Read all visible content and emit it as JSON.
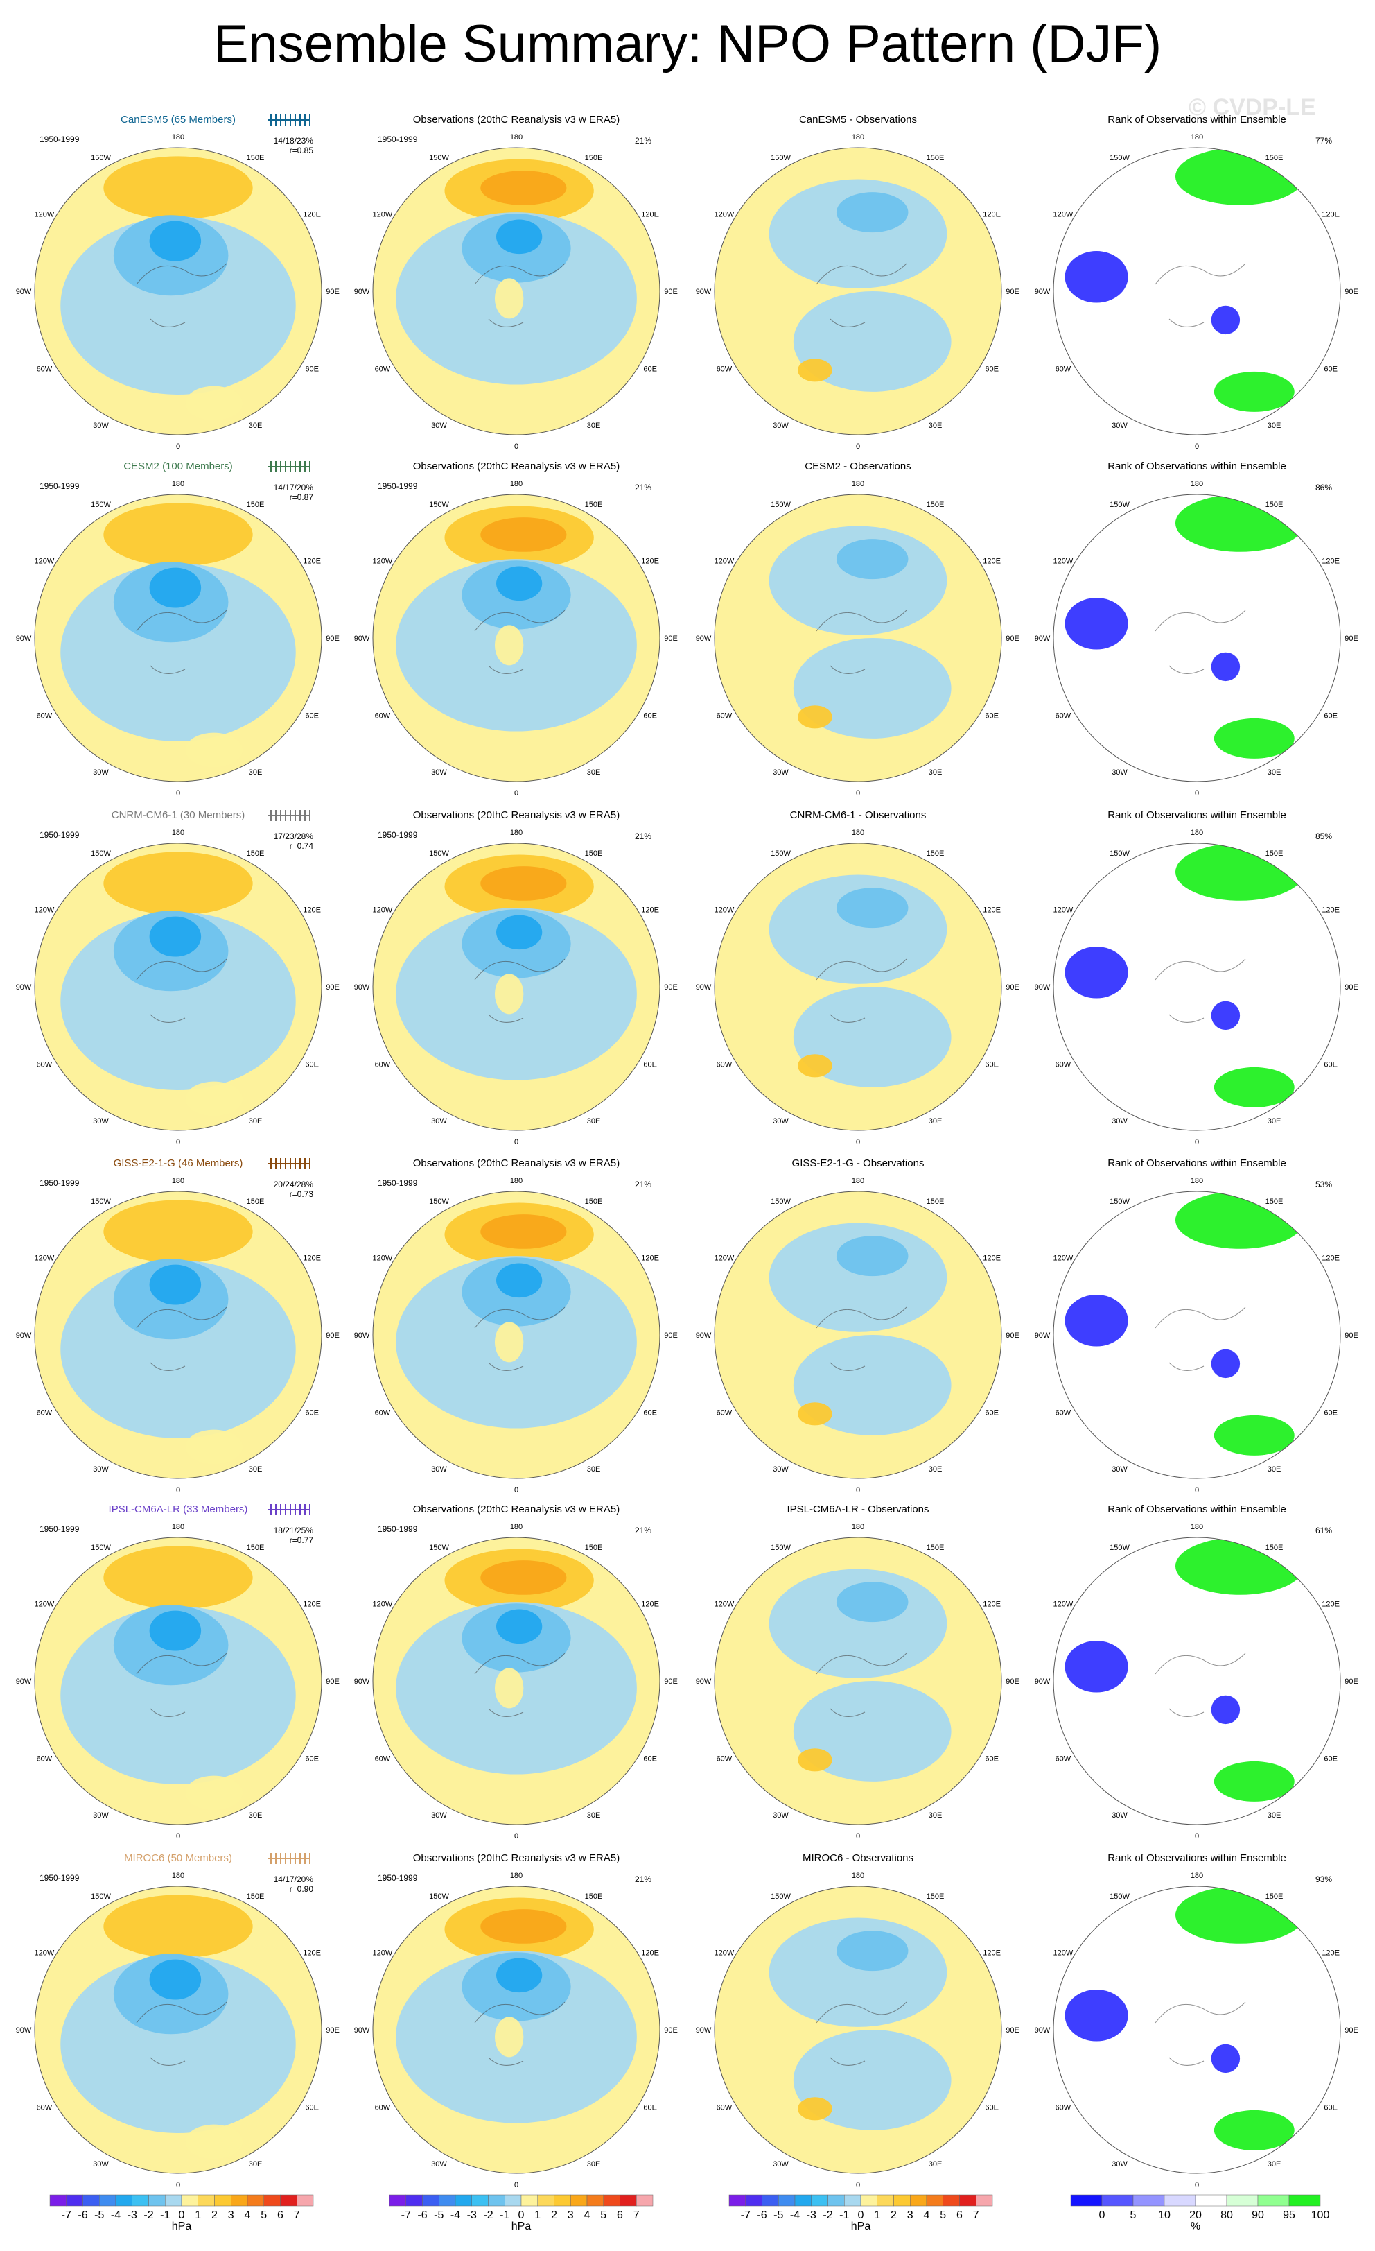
{
  "title": "Ensemble Summary: NPO Pattern (DJF)",
  "watermark": "© CVDP-LE",
  "period": "1950-1999",
  "obs_title": "Observations (20thC Reanalysis v3 w ERA5)",
  "obs_pct": "21%",
  "rank_title": "Rank of Observations within Ensemble",
  "lon_labels": [
    "180",
    "150E",
    "120E",
    "90E",
    "60E",
    "30E",
    "0",
    "30W",
    "60W",
    "90W",
    "120W",
    "150W"
  ],
  "colors": {
    "light_blue": "#a8d8ef",
    "mid_blue": "#6ec3ee",
    "bright_blue": "#22a8ee",
    "dark_blue": "#4a78d8",
    "light_yellow": "#fdf29c",
    "yellow_orange": "#fcc932",
    "orange": "#f9a719",
    "rank_white": "#ffffff",
    "rank_green": "#22f022",
    "rank_blue": "#3434ff"
  },
  "rows": [
    {
      "model": "CanESM5",
      "label": "CanESM5 (65 Members)",
      "color": "#0e6591",
      "stats": "14/18/23%",
      "r": "r=0.85",
      "diff_title": "CanESM5 - Observations",
      "rank_pct": "77%"
    },
    {
      "model": "CESM2",
      "label": "CESM2 (100 Members)",
      "color": "#3e7a4e",
      "stats": "14/17/20%",
      "r": "r=0.87",
      "diff_title": "CESM2 - Observations",
      "rank_pct": "86%"
    },
    {
      "model": "CNRM-CM6-1",
      "label": "CNRM-CM6-1 (30 Members)",
      "color": "#7a7a7a",
      "stats": "17/23/28%",
      "r": "r=0.74",
      "diff_title": "CNRM-CM6-1 - Observations",
      "rank_pct": "85%"
    },
    {
      "model": "GISS-E2-1-G",
      "label": "GISS-E2-1-G (46 Members)",
      "color": "#8a4a0e",
      "stats": "20/24/28%",
      "r": "r=0.73",
      "diff_title": "GISS-E2-1-G - Observations",
      "rank_pct": "53%"
    },
    {
      "model": "IPSL-CM6A-LR",
      "label": "IPSL-CM6A-LR (33 Members)",
      "color": "#6a40c8",
      "stats": "18/21/25%",
      "r": "r=0.77",
      "diff_title": "IPSL-CM6A-LR - Observations",
      "rank_pct": "61%"
    },
    {
      "model": "MIROC6",
      "label": "MIROC6 (50 Members)",
      "color": "#d4a06a",
      "stats": "14/17/20%",
      "r": "r=0.90",
      "diff_title": "MIROC6 - Observations",
      "rank_pct": "93%"
    }
  ],
  "chart_data": {
    "type": "heatmap",
    "projection": "north polar stereographic",
    "variable": "NPO pattern sea level pressure anomaly (DJF)",
    "colorbars": [
      {
        "units": "hPa",
        "tick_labels": [
          "-7",
          "-6",
          "-5",
          "-4",
          "-3",
          "-2",
          "-1",
          "0",
          "1",
          "2",
          "3",
          "4",
          "5",
          "6",
          "7"
        ],
        "levels": [
          -7,
          -6,
          -5,
          -4,
          -3,
          -2,
          -1,
          0,
          1,
          2,
          3,
          4,
          5,
          6,
          7
        ],
        "colors": [
          "#7b1ee8",
          "#4f2ef0",
          "#3b5ff2",
          "#3f8cf0",
          "#22a8ee",
          "#3cc0f2",
          "#6ec3ee",
          "#a8d8ef",
          "#fdf29c",
          "#fcd85a",
          "#fcc932",
          "#f9a719",
          "#f47c1c",
          "#ef4a1c",
          "#e1201e",
          "#f6a6ac"
        ]
      },
      {
        "units": "%",
        "tick_labels": [
          "0",
          "5",
          "10",
          "20",
          "80",
          "90",
          "95",
          "100"
        ],
        "levels": [
          0,
          5,
          10,
          20,
          80,
          90,
          95,
          100
        ],
        "colors": [
          "#1414ff",
          "#5656ff",
          "#9494ff",
          "#d8d8ff",
          "#ffffff",
          "#d6ffd6",
          "#90ff90",
          "#22f022"
        ]
      }
    ],
    "summary": [
      {
        "model": "CanESM5",
        "members": 65,
        "pct_variance": [
          14,
          18,
          23
        ],
        "pattern_correlation": 0.85,
        "obs_rank_pct": 77
      },
      {
        "model": "CESM2",
        "members": 100,
        "pct_variance": [
          14,
          17,
          20
        ],
        "pattern_correlation": 0.87,
        "obs_rank_pct": 86
      },
      {
        "model": "CNRM-CM6-1",
        "members": 30,
        "pct_variance": [
          17,
          23,
          28
        ],
        "pattern_correlation": 0.74,
        "obs_rank_pct": 85
      },
      {
        "model": "GISS-E2-1-G",
        "members": 46,
        "pct_variance": [
          20,
          24,
          28
        ],
        "pattern_correlation": 0.73,
        "obs_rank_pct": 53
      },
      {
        "model": "IPSL-CM6A-LR",
        "members": 33,
        "pct_variance": [
          18,
          21,
          25
        ],
        "pattern_correlation": 0.77,
        "obs_rank_pct": 61
      },
      {
        "model": "MIROC6",
        "members": 50,
        "pct_variance": [
          14,
          17,
          20
        ],
        "pattern_correlation": 0.9,
        "obs_rank_pct": 93
      }
    ],
    "observations_pct_variance": 21
  }
}
